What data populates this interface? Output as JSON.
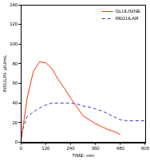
{
  "chart_data": {
    "type": "line",
    "x_label": "TIME- min",
    "y_label": "INSULIN- µIU/mL",
    "x": [
      0,
      30,
      60,
      90,
      120,
      150,
      180,
      210,
      240,
      270,
      300,
      330,
      360,
      390,
      420,
      450,
      480,
      510,
      540,
      570,
      600
    ],
    "series": [
      {
        "name": "GLULISINE",
        "color": "#ff3300",
        "line_style": "solid",
        "values": [
          0,
          45,
          72,
          82,
          81,
          75,
          64,
          55,
          45,
          36,
          27,
          23,
          19,
          16,
          13,
          11,
          8,
          null,
          null,
          null,
          null
        ]
      },
      {
        "name": "REGULAR",
        "color": "#3333cc",
        "line_style": "dashed",
        "values": [
          8,
          26,
          31,
          35,
          38,
          40,
          40,
          40,
          40,
          39,
          37,
          36,
          34,
          32,
          29,
          26,
          23,
          22,
          22,
          22,
          22
        ]
      }
    ],
    "xlim": [
      0,
      600
    ],
    "xticks": [
      0,
      120,
      240,
      360,
      480,
      600
    ],
    "ylim": [
      0,
      140
    ],
    "yticks": [
      0,
      20,
      40,
      60,
      80,
      100,
      120,
      140
    ],
    "grid": false,
    "legend": "upper right"
  }
}
